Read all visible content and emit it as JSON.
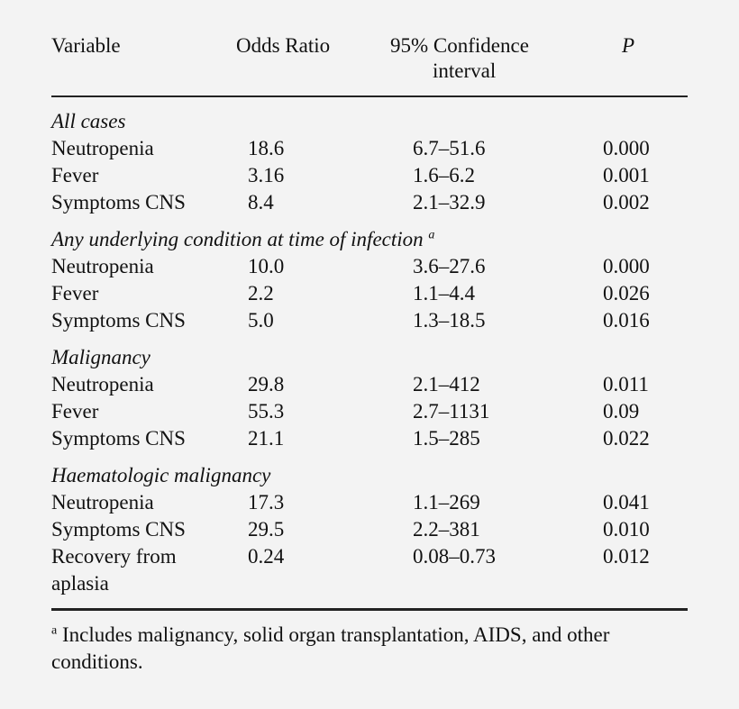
{
  "header": {
    "variable": "Variable",
    "odds_ratio": "Odds Ratio",
    "ci_line1": "95% Confidence",
    "ci_line2": "interval",
    "p": "P"
  },
  "sections": [
    {
      "title": "All cases",
      "title_sup": "",
      "rows": [
        {
          "variable": "Neutropenia",
          "or": "18.6",
          "ci": "6.7–51.6",
          "p": "0.000"
        },
        {
          "variable": "Fever",
          "or": "3.16",
          "ci": "1.6–6.2",
          "p": "0.001"
        },
        {
          "variable": "Symptoms CNS",
          "or": "8.4",
          "ci": "2.1–32.9",
          "p": "0.002"
        }
      ]
    },
    {
      "title": "Any underlying condition at time of infection",
      "title_sup": "a",
      "rows": [
        {
          "variable": "Neutropenia",
          "or": "10.0",
          "ci": "3.6–27.6",
          "p": "0.000"
        },
        {
          "variable": "Fever",
          "or": "2.2",
          "ci": "1.1–4.4",
          "p": "0.026"
        },
        {
          "variable": "Symptoms CNS",
          "or": "5.0",
          "ci": "1.3–18.5",
          "p": "0.016"
        }
      ]
    },
    {
      "title": "Malignancy",
      "title_sup": "",
      "rows": [
        {
          "variable": "Neutropenia",
          "or": "29.8",
          "ci": "2.1–412",
          "p": "0.011"
        },
        {
          "variable": "Fever",
          "or": "55.3",
          "ci": "2.7–1131",
          "p": "0.09"
        },
        {
          "variable": "Symptoms CNS",
          "or": "21.1",
          "ci": "1.5–285",
          "p": "0.022"
        }
      ]
    },
    {
      "title": "Haematologic malignancy",
      "title_sup": "",
      "rows": [
        {
          "variable": "Neutropenia",
          "or": "17.3",
          "ci": "1.1–269",
          "p": "0.041"
        },
        {
          "variable": "Symptoms CNS",
          "or": "29.5",
          "ci": "2.2–381",
          "p": "0.010"
        },
        {
          "variable": "Recovery from",
          "or": "0.24",
          "ci": "0.08–0.73",
          "p": "0.012"
        }
      ]
    }
  ],
  "recovery_cont": "aplasia",
  "footnote": {
    "marker": "a",
    "text": "Includes malignancy, solid organ transplantation, AIDS, and other conditions."
  }
}
